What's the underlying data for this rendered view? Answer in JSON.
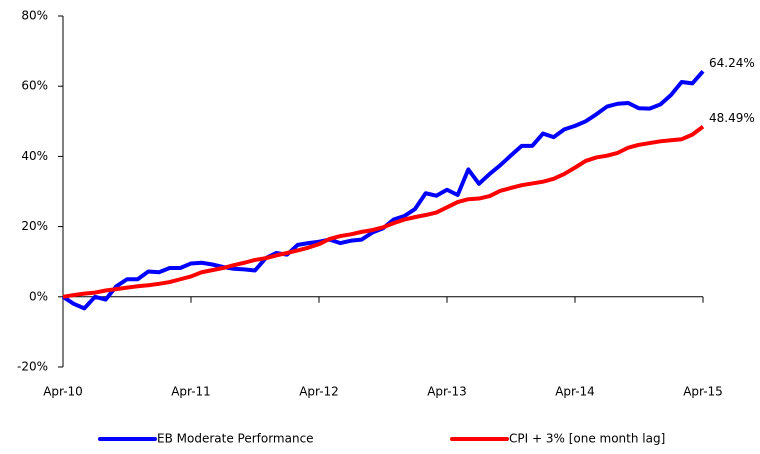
{
  "chart_data": {
    "type": "line",
    "categories": [
      "Apr-10",
      null,
      null,
      null,
      null,
      null,
      null,
      null,
      null,
      null,
      null,
      null,
      "Apr-11",
      null,
      null,
      null,
      null,
      null,
      null,
      null,
      null,
      null,
      null,
      null,
      "Apr-12",
      null,
      null,
      null,
      null,
      null,
      null,
      null,
      null,
      null,
      null,
      null,
      "Apr-13",
      null,
      null,
      null,
      null,
      null,
      null,
      null,
      null,
      null,
      null,
      null,
      "Apr-14",
      null,
      null,
      null,
      null,
      null,
      null,
      null,
      null,
      null,
      null,
      null,
      "Apr-15"
    ],
    "series": [
      {
        "name": "EB Moderate Performance",
        "color": "#0000ff",
        "values": [
          0,
          -2,
          -3.3,
          0,
          -0.8,
          3,
          5,
          5,
          7.2,
          7,
          8.2,
          8.2,
          9.5,
          9.7,
          9.2,
          8.5,
          8,
          7.8,
          7.5,
          11,
          12.5,
          12,
          14.8,
          15.3,
          15.7,
          16.3,
          15.3,
          16,
          16.3,
          18.3,
          19.5,
          22,
          23,
          25,
          29.5,
          28.8,
          30.5,
          29,
          36.3,
          32.2,
          35,
          37.5,
          40.3,
          43,
          43,
          46.5,
          45.5,
          47.7,
          48.7,
          50,
          52,
          54.2,
          55,
          55.2,
          53.7,
          53.6,
          54.8,
          57.5,
          61.2,
          60.8,
          64.24
        ],
        "value_labels": [
          null,
          null,
          null,
          null,
          null,
          null,
          null,
          null,
          null,
          null,
          null,
          null,
          null,
          null,
          null,
          null,
          null,
          null,
          null,
          null,
          null,
          null,
          null,
          null,
          null,
          null,
          null,
          null,
          null,
          null,
          null,
          null,
          null,
          null,
          null,
          null,
          null,
          null,
          null,
          null,
          null,
          null,
          null,
          null,
          null,
          null,
          null,
          null,
          null,
          null,
          null,
          null,
          null,
          null,
          null,
          null,
          null,
          null,
          null,
          null,
          "64.24%"
        ]
      },
      {
        "name": "CPI + 3% [one month lag]",
        "color": "#ff0000",
        "values": [
          0,
          0.5,
          0.9,
          1.2,
          1.8,
          2.2,
          2.6,
          3,
          3.3,
          3.7,
          4.2,
          5,
          5.8,
          7,
          7.6,
          8.2,
          9,
          9.7,
          10.5,
          11,
          11.8,
          12.5,
          13.2,
          14,
          15,
          16.5,
          17.3,
          17.8,
          18.5,
          19,
          19.8,
          21,
          22,
          22.7,
          23.3,
          24,
          25.5,
          27,
          27.8,
          28,
          28.7,
          30.2,
          31,
          31.8,
          32.3,
          32.8,
          33.6,
          35,
          36.8,
          38.7,
          39.7,
          40.2,
          41,
          42.5,
          43.3,
          43.8,
          44.3,
          44.6,
          44.9,
          46.2,
          48.49
        ],
        "value_labels": [
          null,
          null,
          null,
          null,
          null,
          null,
          null,
          null,
          null,
          null,
          null,
          null,
          null,
          null,
          null,
          null,
          null,
          null,
          null,
          null,
          null,
          null,
          null,
          null,
          null,
          null,
          null,
          null,
          null,
          null,
          null,
          null,
          null,
          null,
          null,
          null,
          null,
          null,
          null,
          null,
          null,
          null,
          null,
          null,
          null,
          null,
          null,
          null,
          null,
          null,
          null,
          null,
          null,
          null,
          null,
          null,
          null,
          null,
          null,
          null,
          "48.49%"
        ]
      }
    ],
    "ylim": [
      -20,
      80
    ],
    "yticks": [
      {
        "value": -20,
        "label": "-20%"
      },
      {
        "value": 0,
        "label": "0%"
      },
      {
        "value": 20,
        "label": "20%"
      },
      {
        "value": 40,
        "label": "40%"
      },
      {
        "value": 60,
        "label": "60%"
      },
      {
        "value": 80,
        "label": "80%"
      }
    ],
    "grid": false,
    "legend": "bottom"
  }
}
